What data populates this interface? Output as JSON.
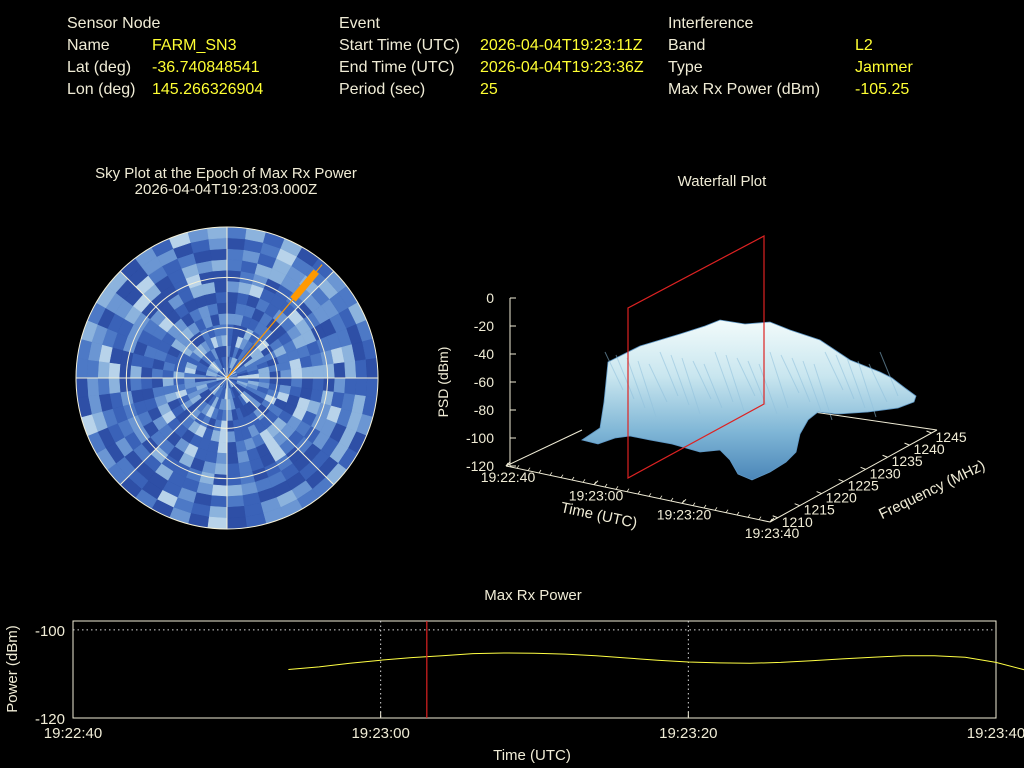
{
  "info": {
    "sensor": {
      "heading": "Sensor Node",
      "rows": [
        {
          "label": "Name",
          "value": "FARM_SN3"
        },
        {
          "label": "Lat (deg)",
          "value": "-36.740848541"
        },
        {
          "label": "Lon (deg)",
          "value": "145.266326904"
        }
      ]
    },
    "event": {
      "heading": "Event",
      "rows": [
        {
          "label": "Start Time (UTC)",
          "value": "2026-04-04T19:23:11Z"
        },
        {
          "label": "End Time (UTC)",
          "value": "2026-04-04T19:23:36Z"
        },
        {
          "label": "Period (sec)",
          "value": "25"
        }
      ]
    },
    "interference": {
      "heading": "Interference",
      "rows": [
        {
          "label": "Band",
          "value": "L2"
        },
        {
          "label": "Type",
          "value": "Jammer"
        },
        {
          "label": "Max Rx Power (dBm)",
          "value": "-105.25"
        }
      ]
    }
  },
  "colors": {
    "text": "#f0ecd6",
    "value": "#ffff33",
    "marker": "#dd2222",
    "sky_bearing": "#ff9900",
    "power_line": "#ffff44"
  },
  "chart_data": [
    {
      "type": "polar",
      "title": "Sky Plot at the Epoch of Max Rx Power",
      "subtitle": "2026-04-04T19:23:03.000Z",
      "rings": 3,
      "spokes": 8,
      "bearing_deg": 40,
      "grid": true
    },
    {
      "type": "surface",
      "title": "Waterfall Plot",
      "zlabel": "PSD (dBm)",
      "xlabel": "Time (UTC)",
      "ylabel": "Frequency (MHz)",
      "z_ticks": [
        "0",
        "-20",
        "-40",
        "-60",
        "-80",
        "-100",
        "-120"
      ],
      "x_ticks": [
        "19:22:40",
        "19:23:00",
        "19:23:20",
        "19:23:40"
      ],
      "y_ticks": [
        "1210",
        "1215",
        "1220",
        "1225",
        "1230",
        "1235",
        "1240",
        "1245"
      ],
      "zlim": [
        -120,
        0
      ],
      "marker_time": "19:23:03"
    },
    {
      "type": "line",
      "title": "Max Rx Power",
      "xlabel": "Time (UTC)",
      "ylabel": "Power (dBm)",
      "x_ticks": [
        "19:22:40",
        "19:23:00",
        "19:23:20",
        "19:23:40"
      ],
      "y_ticks": [
        "-100",
        "-120"
      ],
      "ylim": [
        -120,
        -98
      ],
      "x_seconds_range": [
        0,
        60
      ],
      "series": [
        {
          "x": [
            0,
            2,
            4,
            6,
            8,
            10,
            12,
            14,
            16,
            18,
            20,
            22,
            24,
            26,
            28,
            30,
            32,
            34,
            36,
            38,
            40,
            42,
            44,
            46,
            48
          ],
          "y": [
            -109.0,
            -108.4,
            -107.6,
            -106.9,
            -106.3,
            -105.9,
            -105.4,
            -105.25,
            -105.3,
            -105.5,
            -105.9,
            -106.4,
            -106.9,
            -107.3,
            -107.5,
            -107.6,
            -107.4,
            -107.0,
            -106.6,
            -106.2,
            -105.9,
            -105.9,
            -106.2,
            -107.4,
            -109.2
          ]
        }
      ],
      "x_offset_s": 14,
      "marker_time": "19:23:03",
      "grid": true
    }
  ]
}
